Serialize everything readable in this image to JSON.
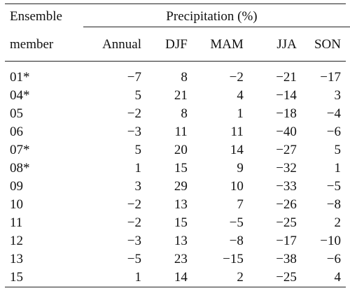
{
  "table": {
    "header": {
      "member_line1": "Ensemble",
      "member_line2": "member",
      "group_label": "Precipitation (%)",
      "columns": [
        "Annual",
        "DJF",
        "MAM",
        "JJA",
        "SON"
      ]
    },
    "rows": [
      {
        "member": "01*",
        "values": [
          "−7",
          "8",
          "−2",
          "−21",
          "−17"
        ]
      },
      {
        "member": "04*",
        "values": [
          "5",
          "21",
          "4",
          "−14",
          "3"
        ]
      },
      {
        "member": "05",
        "values": [
          "−2",
          "8",
          "1",
          "−18",
          "−4"
        ]
      },
      {
        "member": "06",
        "values": [
          "−3",
          "11",
          "11",
          "−40",
          "−6"
        ]
      },
      {
        "member": "07*",
        "values": [
          "5",
          "20",
          "14",
          "−27",
          "5"
        ]
      },
      {
        "member": "08*",
        "values": [
          "1",
          "15",
          "9",
          "−32",
          "1"
        ]
      },
      {
        "member": "09",
        "values": [
          "3",
          "29",
          "10",
          "−33",
          "−5"
        ]
      },
      {
        "member": "10",
        "values": [
          "−2",
          "13",
          "7",
          "−26",
          "−8"
        ]
      },
      {
        "member": "11",
        "values": [
          "−2",
          "15",
          "−5",
          "−25",
          "2"
        ]
      },
      {
        "member": "12",
        "values": [
          "−3",
          "13",
          "−8",
          "−17",
          "−10"
        ]
      },
      {
        "member": "13",
        "values": [
          "−5",
          "23",
          "−15",
          "−38",
          "−6"
        ]
      },
      {
        "member": "15",
        "values": [
          "1",
          "14",
          "2",
          "−25",
          "4"
        ]
      }
    ]
  }
}
